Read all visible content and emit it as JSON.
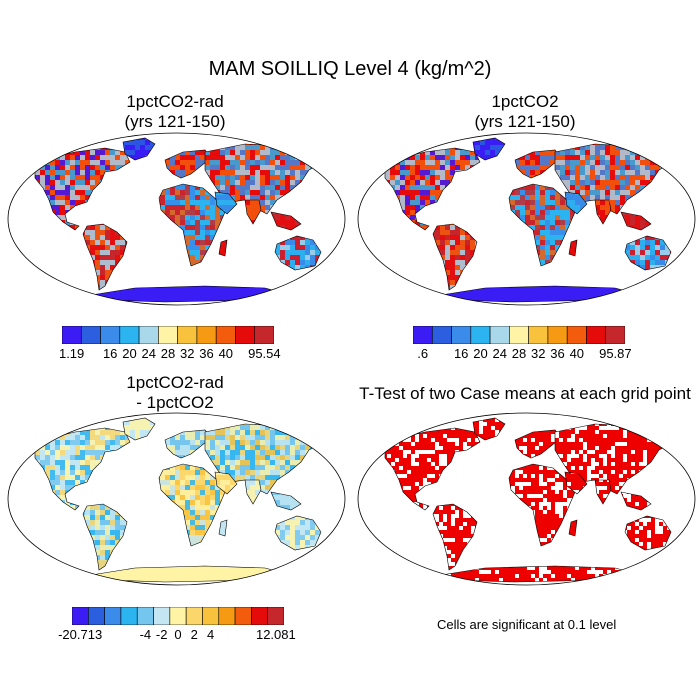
{
  "title": "MAM SOILLIQ Level 4 (kg/m^2)",
  "panels": [
    {
      "title_line1": "1pctCO2-rad",
      "title_line2": "(yrs 121-150)"
    },
    {
      "title_line1": "1pctCO2",
      "title_line2": "(yrs 121-150)"
    },
    {
      "title_line1": "1pctCO2-rad",
      "title_line2": "- 1pctCO2"
    },
    {
      "title_line1": "T-Test of two Case means at each grid point",
      "title_line2": ""
    }
  ],
  "note": "Cells are significant at 0.1 level",
  "chart_data": [
    {
      "type": "heatmap",
      "title": "1pctCO2-rad (yrs 121-150)",
      "colorbar": {
        "tick_labels": [
          "1.19",
          "16",
          "20",
          "24",
          "28",
          "32",
          "36",
          "40",
          "95.54"
        ],
        "levels": [
          1.19,
          12,
          16,
          20,
          24,
          28,
          32,
          36,
          40,
          44,
          95.54
        ],
        "colors": [
          "#3b1cf5",
          "#2c5fe0",
          "#3a8bea",
          "#2bb4f0",
          "#a8d8ea",
          "#fff3a6",
          "#f9c23c",
          "#f69a13",
          "#f25c0c",
          "#e60b0b",
          "#c6272c"
        ]
      }
    },
    {
      "type": "heatmap",
      "title": "1pctCO2 (yrs 121-150)",
      "colorbar": {
        "tick_labels": [
          ".6",
          "16",
          "20",
          "24",
          "28",
          "32",
          "36",
          "40",
          "95.87"
        ],
        "levels": [
          0.6,
          12,
          16,
          20,
          24,
          28,
          32,
          36,
          40,
          44,
          95.87
        ],
        "colors": [
          "#3b1cf5",
          "#2c5fe0",
          "#3a8bea",
          "#2bb4f0",
          "#a8d8ea",
          "#fff3a6",
          "#f9c23c",
          "#f69a13",
          "#f25c0c",
          "#e60b0b",
          "#c6272c"
        ]
      }
    },
    {
      "type": "heatmap",
      "title": "1pctCO2-rad - 1pctCO2",
      "colorbar": {
        "tick_labels": [
          "-20.713",
          "-4",
          "-2",
          "0",
          "2",
          "4",
          "12.081"
        ],
        "levels": [
          -20.713,
          -5,
          -4,
          -3,
          -2,
          -1,
          0,
          1,
          2,
          3,
          4,
          5,
          12.081
        ],
        "colors": [
          "#3b1cf5",
          "#2c5fe0",
          "#3a8bea",
          "#2bb4f0",
          "#74c6ee",
          "#c3e6f2",
          "#fff3a6",
          "#fbd76b",
          "#f9c23c",
          "#f69a13",
          "#f25c0c",
          "#e60b0b",
          "#c6272c"
        ]
      }
    },
    {
      "type": "heatmap",
      "title": "T-Test of two Case means at each grid point",
      "significance_color": "#ee0000"
    }
  ]
}
